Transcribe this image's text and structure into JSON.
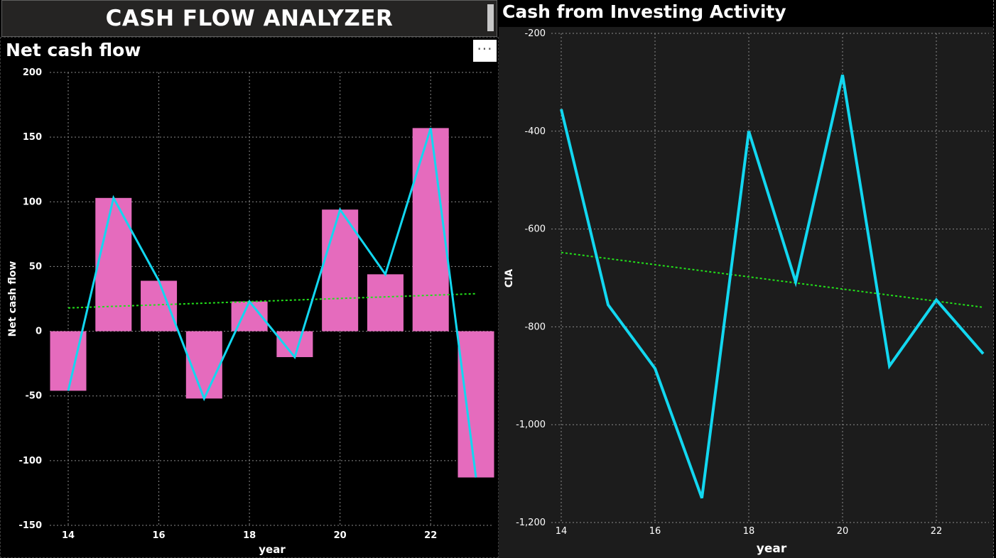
{
  "app": {
    "title": "CASH FLOW ANALYZER"
  },
  "more_button": {
    "label": "···"
  },
  "colors": {
    "background": "#000000",
    "bar": "#e56bbd",
    "line": "#12d7f0",
    "trend": "#22e01a",
    "grid": "#8a8a8a",
    "right_plot_bg": "#1c1c1c"
  },
  "chart_data": [
    {
      "type": "bar",
      "title": "Net cash flow",
      "xlabel": "year",
      "ylabel": "Net cash flow",
      "x": [
        14,
        15,
        16,
        17,
        18,
        19,
        20,
        21,
        22,
        23
      ],
      "series": [
        {
          "kind": "bar",
          "values": [
            -46,
            103,
            39,
            -52,
            23,
            -20,
            94,
            44,
            157,
            -113
          ]
        },
        {
          "kind": "line",
          "values": [
            -46,
            103,
            39,
            -52,
            23,
            -20,
            94,
            44,
            157,
            -113
          ]
        }
      ],
      "trendline": {
        "start": 18,
        "end": 29,
        "style": "dotted"
      },
      "xticks": [
        14,
        16,
        18,
        20,
        22
      ],
      "yticks": [
        200,
        150,
        100,
        50,
        0,
        -50,
        -100,
        -150
      ],
      "ylim": [
        -150,
        200
      ],
      "grid": true
    },
    {
      "type": "line",
      "title": "Cash from Investing Activity",
      "xlabel": "year",
      "ylabel": "CIA",
      "x": [
        14,
        15,
        16,
        17,
        18,
        19,
        20,
        21,
        22,
        23
      ],
      "series": [
        {
          "kind": "line",
          "values": [
            -355,
            -755,
            -885,
            -1150,
            -400,
            -708,
            -285,
            -880,
            -745,
            -855
          ]
        }
      ],
      "trendline": {
        "start": -648,
        "end": -760,
        "style": "dotted"
      },
      "xticks": [
        14,
        16,
        18,
        20,
        22
      ],
      "yticks": [
        -200,
        -400,
        -600,
        -800,
        -1000,
        -1200
      ],
      "ytick_labels": [
        "-200",
        "-400",
        "-600",
        "-800",
        "-1,000",
        "-1,200"
      ],
      "ylim": [
        -1200,
        -200
      ],
      "grid": true
    }
  ]
}
